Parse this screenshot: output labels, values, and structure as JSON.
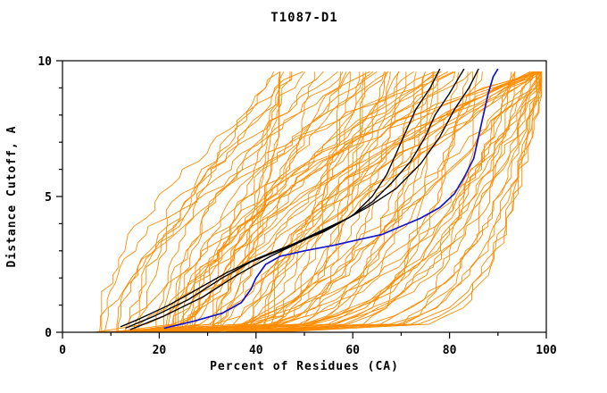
{
  "page": {
    "background": "#FFFFFF"
  },
  "chart_data": {
    "type": "line",
    "title": "T1087-D1",
    "xlabel": "Percent of Residues (CA)",
    "ylabel": "Distance Cutoff, A",
    "xlim": [
      0,
      100
    ],
    "ylim": [
      0,
      10
    ],
    "x_ticks": [
      0,
      20,
      40,
      60,
      80,
      100
    ],
    "x_minor_step": 10,
    "y_ticks": [
      0,
      5,
      10
    ],
    "y_minor_step": 1,
    "grid": false,
    "legend": "none",
    "colors": {
      "ensemble": "#FF8C00",
      "reference": "#000000",
      "highlight": "#1414CC"
    },
    "ensemble": {
      "name": "predicted-model-curves",
      "count": 88,
      "seed": 20871,
      "x_start_range": [
        6,
        44
      ],
      "x_end_range": [
        45,
        99
      ],
      "note": "dense cloud of ~88 orange cumulative GDT-style curves rising from lower-left to upper-right"
    },
    "reference_series": [
      {
        "name": "black-model-1",
        "points": [
          [
            12,
            0.2
          ],
          [
            16,
            0.5
          ],
          [
            22,
            1.0
          ],
          [
            28,
            1.6
          ],
          [
            34,
            2.2
          ],
          [
            40,
            2.7
          ],
          [
            47,
            3.2
          ],
          [
            54,
            3.7
          ],
          [
            60,
            4.3
          ],
          [
            64,
            5.0
          ],
          [
            67,
            5.8
          ],
          [
            69,
            6.6
          ],
          [
            71,
            7.4
          ],
          [
            73,
            8.2
          ],
          [
            76,
            9.0
          ],
          [
            78,
            9.7
          ]
        ]
      },
      {
        "name": "black-model-2",
        "points": [
          [
            13,
            0.15
          ],
          [
            19,
            0.6
          ],
          [
            26,
            1.2
          ],
          [
            33,
            2.0
          ],
          [
            39,
            2.6
          ],
          [
            46,
            3.1
          ],
          [
            53,
            3.7
          ],
          [
            59,
            4.2
          ],
          [
            64,
            4.8
          ],
          [
            68,
            5.5
          ],
          [
            72,
            6.3
          ],
          [
            75,
            7.2
          ],
          [
            77,
            8.0
          ],
          [
            80,
            8.8
          ],
          [
            82,
            9.4
          ],
          [
            83,
            9.7
          ]
        ]
      },
      {
        "name": "black-model-3",
        "points": [
          [
            14,
            0.1
          ],
          [
            21,
            0.6
          ],
          [
            29,
            1.3
          ],
          [
            36,
            2.1
          ],
          [
            43,
            2.8
          ],
          [
            50,
            3.4
          ],
          [
            57,
            4.0
          ],
          [
            63,
            4.6
          ],
          [
            69,
            5.3
          ],
          [
            74,
            6.2
          ],
          [
            78,
            7.2
          ],
          [
            81,
            8.2
          ],
          [
            84,
            9.0
          ],
          [
            86,
            9.7
          ]
        ]
      }
    ],
    "highlight_series": {
      "name": "blue-model",
      "points": [
        [
          21,
          0.15
        ],
        [
          27,
          0.4
        ],
        [
          33,
          0.7
        ],
        [
          37,
          1.1
        ],
        [
          39,
          1.6
        ],
        [
          40,
          2.0
        ],
        [
          42,
          2.5
        ],
        [
          45,
          2.8
        ],
        [
          50,
          3.0
        ],
        [
          56,
          3.2
        ],
        [
          61,
          3.4
        ],
        [
          66,
          3.6
        ],
        [
          70,
          3.9
        ],
        [
          74,
          4.2
        ],
        [
          78,
          4.6
        ],
        [
          81,
          5.1
        ],
        [
          83,
          5.7
        ],
        [
          85,
          6.4
        ],
        [
          86,
          7.2
        ],
        [
          87,
          8.0
        ],
        [
          88,
          8.8
        ],
        [
          89,
          9.4
        ],
        [
          90,
          9.7
        ]
      ]
    }
  }
}
